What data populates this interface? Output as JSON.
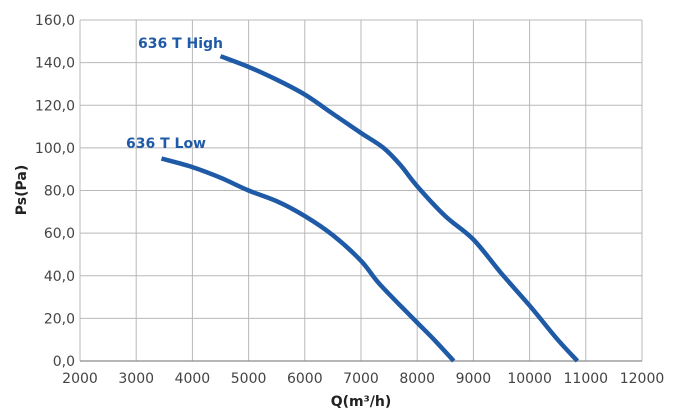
{
  "chart_data": {
    "type": "line",
    "title": "",
    "xlabel": "Q(m³/h)",
    "ylabel": "Ps(Pa)",
    "xlim": [
      2000,
      12000
    ],
    "ylim": [
      0,
      160
    ],
    "x_ticks": [
      "2000",
      "3000",
      "4000",
      "5000",
      "6000",
      "7000",
      "8000",
      "9000",
      "10000",
      "11000",
      "12000"
    ],
    "y_ticks": [
      "0,0",
      "20,0",
      "40,0",
      "60,0",
      "80,0",
      "100,0",
      "120,0",
      "140,0",
      "160,0"
    ],
    "grid": true,
    "line_color": "#1f5aa6",
    "series": [
      {
        "name": "636 T High",
        "x": [
          4500,
          5000,
          5500,
          6000,
          6500,
          7000,
          7400,
          7700,
          8000,
          8500,
          9000,
          9500,
          10000,
          10500,
          10850
        ],
        "y": [
          143,
          138,
          132,
          125,
          116,
          107,
          100,
          92,
          82,
          68,
          57,
          41,
          26,
          10,
          0
        ]
      },
      {
        "name": "636 T Low",
        "x": [
          3450,
          4000,
          4500,
          5000,
          5500,
          6000,
          6500,
          7000,
          7300,
          7700,
          8000,
          8300,
          8650
        ],
        "y": [
          95,
          91,
          86,
          80,
          75,
          68,
          59,
          47,
          37,
          26,
          18,
          10,
          0
        ]
      }
    ]
  }
}
